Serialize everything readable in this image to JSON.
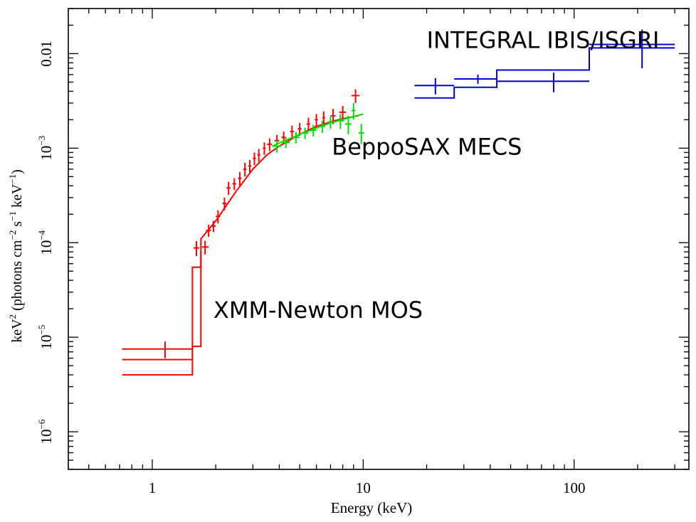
{
  "chart_data": {
    "type": "scatter",
    "title": "",
    "xlabel": "Energy (keV)",
    "ylabel": {
      "base": "keV",
      "sup1": "2",
      "paren_open": " (photons cm",
      "sup2": "−2",
      "mid1": " s",
      "sup3": "−1",
      "mid2": " keV",
      "sup4": "−1",
      "paren_close": ")"
    },
    "xscale": "log",
    "yscale": "log",
    "xlim": [
      0.4,
      350
    ],
    "ylim": [
      4e-07,
      0.03
    ],
    "x_ticks": [
      {
        "value": 1,
        "label": "1"
      },
      {
        "value": 10,
        "label": "10"
      },
      {
        "value": 100,
        "label": "100"
      }
    ],
    "y_ticks": [
      {
        "value": 1e-06,
        "base": "10",
        "exp": "−6",
        "label": ""
      },
      {
        "value": 1e-05,
        "base": "10",
        "exp": "−5",
        "label": ""
      },
      {
        "value": 0.0001,
        "base": "10",
        "exp": "−4",
        "label": ""
      },
      {
        "value": 0.001,
        "base": "10",
        "exp": "−3",
        "label": ""
      },
      {
        "value": 0.01,
        "base": "",
        "exp": "",
        "label": "0.01"
      }
    ],
    "annotations": [
      {
        "text": "INTEGRAL IBIS/ISGRI",
        "x": 20,
        "y": 0.0115
      },
      {
        "text": "BeppoSAX MECS",
        "x": 7.1,
        "y": 0.00085
      },
      {
        "text": "XMM-Newton MOS",
        "x": 1.95,
        "y": 1.6e-05
      }
    ],
    "series": [
      {
        "name": "XMM-Newton MOS",
        "color": "#ff0000",
        "points": [
          {
            "x": 1.15,
            "xlo": 0.72,
            "xhi": 1.56,
            "y": 7.5e-06,
            "yerr": 1.5e-06
          },
          {
            "x": 1.62,
            "xlo": 1.57,
            "xhi": 1.67,
            "y": 8.8e-05,
            "yerr": 1.6e-05
          },
          {
            "x": 1.78,
            "xlo": 1.72,
            "xhi": 1.85,
            "y": 9e-05,
            "yerr": 1.5e-05
          },
          {
            "x": 1.85,
            "xlo": 1.8,
            "xhi": 1.9,
            "y": 0.000135,
            "yerr": 2e-05
          },
          {
            "x": 1.95,
            "xlo": 1.9,
            "xhi": 2.0,
            "y": 0.00015,
            "yerr": 2e-05
          },
          {
            "x": 2.05,
            "xlo": 2.0,
            "xhi": 2.1,
            "y": 0.00019,
            "yerr": 3e-05
          },
          {
            "x": 2.2,
            "xlo": 2.15,
            "xhi": 2.25,
            "y": 0.00026,
            "yerr": 4e-05
          },
          {
            "x": 2.3,
            "xlo": 2.25,
            "xhi": 2.35,
            "y": 0.00038,
            "yerr": 6e-05
          },
          {
            "x": 2.45,
            "xlo": 2.4,
            "xhi": 2.5,
            "y": 0.00042,
            "yerr": 6e-05
          },
          {
            "x": 2.6,
            "xlo": 2.55,
            "xhi": 2.65,
            "y": 0.00048,
            "yerr": 8e-05
          },
          {
            "x": 2.75,
            "xlo": 2.7,
            "xhi": 2.8,
            "y": 0.0006,
            "yerr": 0.0001
          },
          {
            "x": 2.9,
            "xlo": 2.85,
            "xhi": 2.95,
            "y": 0.00065,
            "yerr": 0.0001
          },
          {
            "x": 3.05,
            "xlo": 3.0,
            "xhi": 3.1,
            "y": 0.00078,
            "yerr": 0.00012
          },
          {
            "x": 3.2,
            "xlo": 3.15,
            "xhi": 3.25,
            "y": 0.00085,
            "yerr": 0.00013
          },
          {
            "x": 3.4,
            "xlo": 3.35,
            "xhi": 3.45,
            "y": 0.001,
            "yerr": 0.00015
          },
          {
            "x": 3.6,
            "xlo": 3.5,
            "xhi": 3.7,
            "y": 0.0011,
            "yerr": 0.00017
          },
          {
            "x": 3.9,
            "xlo": 3.8,
            "xhi": 4.0,
            "y": 0.0012,
            "yerr": 0.00018
          },
          {
            "x": 4.2,
            "xlo": 4.1,
            "xhi": 4.3,
            "y": 0.0013,
            "yerr": 0.0002
          },
          {
            "x": 4.6,
            "xlo": 4.5,
            "xhi": 4.7,
            "y": 0.0015,
            "yerr": 0.00023
          },
          {
            "x": 5.0,
            "xlo": 4.9,
            "xhi": 5.1,
            "y": 0.0016,
            "yerr": 0.00025
          },
          {
            "x": 5.5,
            "xlo": 5.4,
            "xhi": 5.6,
            "y": 0.0018,
            "yerr": 0.0003
          },
          {
            "x": 6.0,
            "xlo": 5.9,
            "xhi": 6.1,
            "y": 0.002,
            "yerr": 0.0003
          },
          {
            "x": 6.5,
            "xlo": 6.4,
            "xhi": 6.6,
            "y": 0.0021,
            "yerr": 0.00035
          },
          {
            "x": 7.2,
            "xlo": 7.0,
            "xhi": 7.4,
            "y": 0.0022,
            "yerr": 0.0004
          },
          {
            "x": 8.0,
            "xlo": 7.7,
            "xhi": 8.3,
            "y": 0.0024,
            "yerr": 0.0004
          },
          {
            "x": 9.2,
            "xlo": 8.8,
            "xhi": 9.6,
            "y": 0.0036,
            "yerr": 0.0006
          }
        ],
        "model": [
          {
            "x": 0.72,
            "y": 5.8e-06
          },
          {
            "x": 1.55,
            "y": 5.8e-06
          },
          {
            "x": 1.55,
            "y": 5.5e-05
          },
          {
            "x": 1.7,
            "y": 5.5e-05
          },
          {
            "x": 1.7,
            "y": 0.00011
          },
          {
            "x": 2.0,
            "y": 0.00017
          },
          {
            "x": 2.5,
            "y": 0.00035
          },
          {
            "x": 3.0,
            "y": 0.0006
          },
          {
            "x": 3.5,
            "y": 0.00085
          },
          {
            "x": 4.0,
            "y": 0.00105
          },
          {
            "x": 5.0,
            "y": 0.0014
          },
          {
            "x": 6.0,
            "y": 0.0017
          },
          {
            "x": 7.0,
            "y": 0.0019
          },
          {
            "x": 8.0,
            "y": 0.00205
          },
          {
            "x": 9.5,
            "y": 0.0022
          }
        ],
        "model_low": [
          {
            "x": 0.72,
            "y": 4e-06
          },
          {
            "x": 1.55,
            "y": 4e-06
          },
          {
            "x": 1.55,
            "y": 8e-06
          },
          {
            "x": 1.7,
            "y": 8e-06
          },
          {
            "x": 1.7,
            "y": 8e-05
          }
        ]
      },
      {
        "name": "BeppoSAX MECS",
        "color": "#00e000",
        "points": [
          {
            "x": 3.9,
            "xlo": 3.7,
            "xhi": 4.1,
            "y": 0.00105,
            "yerr": 0.00015
          },
          {
            "x": 4.3,
            "xlo": 4.1,
            "xhi": 4.5,
            "y": 0.00115,
            "yerr": 0.00015
          },
          {
            "x": 4.8,
            "xlo": 4.6,
            "xhi": 5.0,
            "y": 0.0013,
            "yerr": 0.00018
          },
          {
            "x": 5.3,
            "xlo": 5.1,
            "xhi": 5.5,
            "y": 0.00145,
            "yerr": 0.0002
          },
          {
            "x": 5.8,
            "xlo": 5.6,
            "xhi": 6.0,
            "y": 0.00155,
            "yerr": 0.00022
          },
          {
            "x": 6.4,
            "xlo": 6.2,
            "xhi": 6.6,
            "y": 0.0017,
            "yerr": 0.00025
          },
          {
            "x": 7.0,
            "xlo": 6.8,
            "xhi": 7.2,
            "y": 0.0019,
            "yerr": 0.0003
          },
          {
            "x": 7.8,
            "xlo": 7.5,
            "xhi": 8.1,
            "y": 0.00195,
            "yerr": 0.00035
          },
          {
            "x": 8.5,
            "xlo": 8.2,
            "xhi": 8.8,
            "y": 0.0018,
            "yerr": 0.0004
          },
          {
            "x": 9.0,
            "xlo": 8.8,
            "xhi": 9.2,
            "y": 0.0025,
            "yerr": 0.0005
          },
          {
            "x": 9.8,
            "xlo": 9.5,
            "xhi": 10.1,
            "y": 0.00145,
            "yerr": 0.00035
          }
        ],
        "model": [
          {
            "x": 3.7,
            "y": 0.00105
          },
          {
            "x": 5.0,
            "y": 0.0014
          },
          {
            "x": 7.0,
            "y": 0.00185
          },
          {
            "x": 10.0,
            "y": 0.0023
          }
        ]
      },
      {
        "name": "INTEGRAL IBIS/ISGRI",
        "color": "#0000dd",
        "points": [
          {
            "x": 22,
            "xlo": 17.5,
            "xhi": 27,
            "y": 0.0046,
            "yerr": 0.0009
          },
          {
            "x": 35,
            "xlo": 27,
            "xhi": 43,
            "y": 0.0054,
            "yerr": 0.0006
          },
          {
            "x": 80,
            "xlo": 43,
            "xhi": 118,
            "y": 0.0051,
            "yerr": 0.0012
          },
          {
            "x": 210,
            "xlo": 118,
            "xhi": 300,
            "y": 0.0125,
            "yerr": 0.0055
          }
        ],
        "model": [
          {
            "x": 17.5,
            "y": 0.0034
          },
          {
            "x": 27,
            "y": 0.0034
          },
          {
            "x": 27,
            "y": 0.0044
          },
          {
            "x": 43,
            "y": 0.0044
          },
          {
            "x": 43,
            "y": 0.0067
          },
          {
            "x": 118,
            "y": 0.0067
          },
          {
            "x": 118,
            "y": 0.0115
          },
          {
            "x": 300,
            "y": 0.0115
          }
        ]
      }
    ]
  }
}
